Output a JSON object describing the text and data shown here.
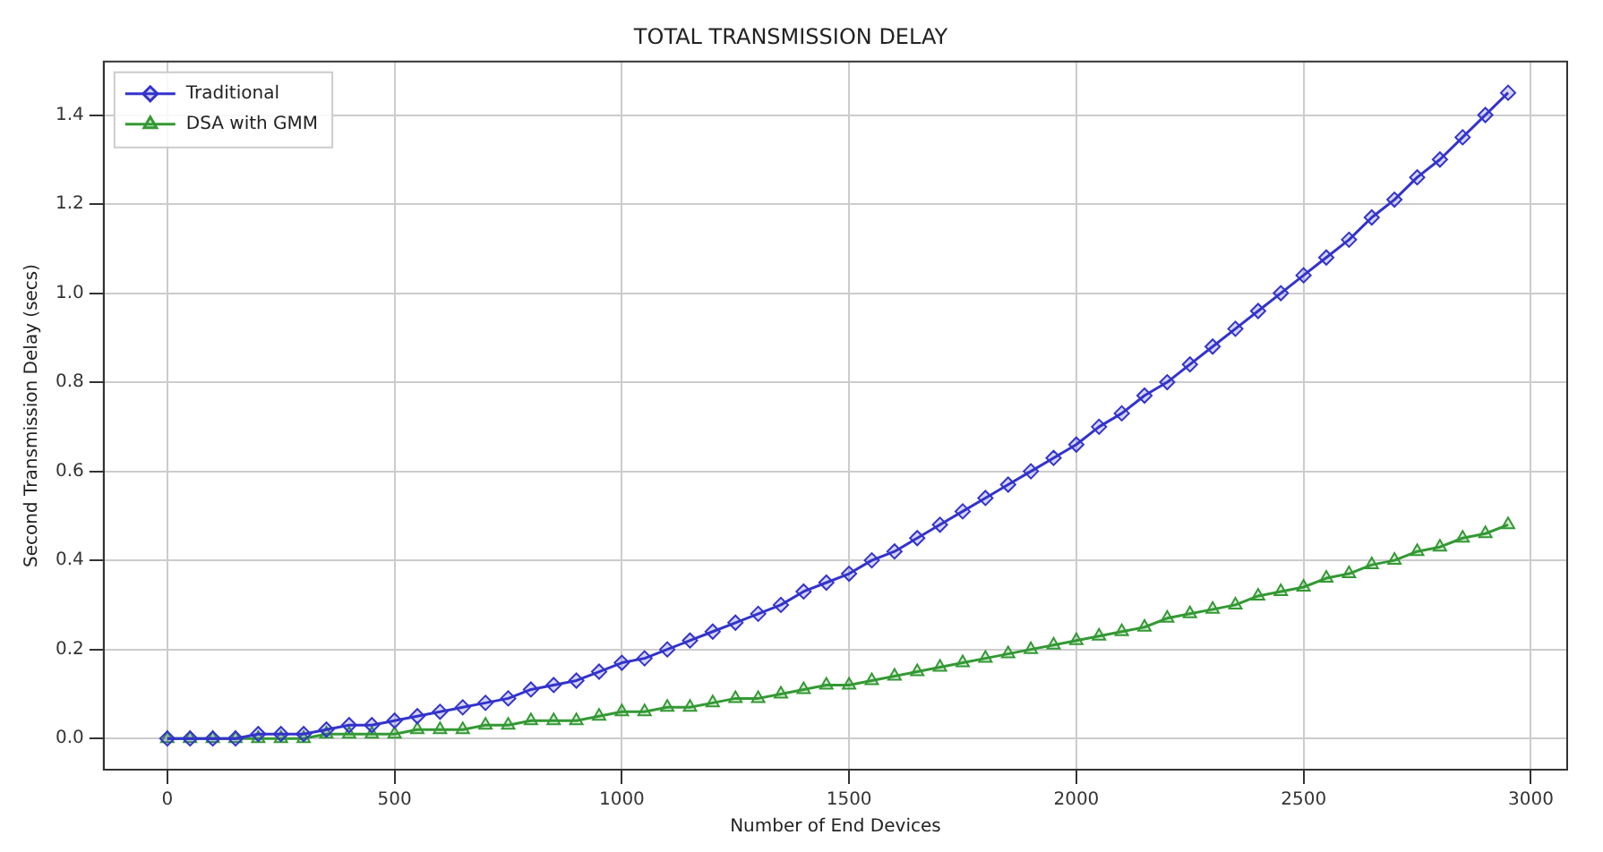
{
  "chart_data": {
    "type": "line",
    "title": "TOTAL TRANSMISSION DELAY",
    "xlabel": "Number of End Devices",
    "ylabel": "Second Transmission Delay (secs)",
    "x": [
      0,
      50,
      100,
      150,
      200,
      250,
      300,
      350,
      400,
      450,
      500,
      550,
      600,
      650,
      700,
      750,
      800,
      850,
      900,
      950,
      1000,
      1050,
      1100,
      1150,
      1200,
      1250,
      1300,
      1350,
      1400,
      1450,
      1500,
      1550,
      1600,
      1650,
      1700,
      1750,
      1800,
      1850,
      1900,
      1950,
      2000,
      2050,
      2100,
      2150,
      2200,
      2250,
      2300,
      2350,
      2400,
      2450,
      2500,
      2550,
      2600,
      2650,
      2700,
      2750,
      2800,
      2850,
      2900,
      2950
    ],
    "series": [
      {
        "name": "Traditional",
        "color": "#3333cc",
        "marker": "diamond",
        "values": [
          0,
          0,
          0,
          0,
          0.01,
          0.01,
          0.01,
          0.02,
          0.03,
          0.03,
          0.04,
          0.05,
          0.06,
          0.07,
          0.08,
          0.09,
          0.11,
          0.12,
          0.13,
          0.15,
          0.17,
          0.18,
          0.2,
          0.22,
          0.24,
          0.26,
          0.28,
          0.3,
          0.33,
          0.35,
          0.37,
          0.4,
          0.42,
          0.45,
          0.48,
          0.51,
          0.54,
          0.57,
          0.6,
          0.63,
          0.66,
          0.7,
          0.73,
          0.77,
          0.8,
          0.84,
          0.88,
          0.92,
          0.96,
          1.0,
          1.04,
          1.08,
          1.12,
          1.17,
          1.21,
          1.26,
          1.3,
          1.35,
          1.4,
          1.45
        ]
      },
      {
        "name": "DSA with GMM",
        "color": "#339933",
        "marker": "triangle",
        "values": [
          0,
          0,
          0,
          0,
          0,
          0,
          0,
          0.01,
          0.01,
          0.01,
          0.01,
          0.02,
          0.02,
          0.02,
          0.03,
          0.03,
          0.04,
          0.04,
          0.04,
          0.05,
          0.06,
          0.06,
          0.07,
          0.07,
          0.08,
          0.09,
          0.09,
          0.1,
          0.11,
          0.12,
          0.12,
          0.13,
          0.14,
          0.15,
          0.16,
          0.17,
          0.18,
          0.19,
          0.2,
          0.21,
          0.22,
          0.23,
          0.24,
          0.25,
          0.27,
          0.28,
          0.29,
          0.3,
          0.32,
          0.33,
          0.34,
          0.36,
          0.37,
          0.39,
          0.4,
          0.42,
          0.43,
          0.45,
          0.46,
          0.48
        ]
      }
    ],
    "xlim": [
      -140,
      3080
    ],
    "xticks": [
      0,
      500,
      1000,
      1500,
      2000,
      2500,
      3000
    ],
    "ylim": [
      -0.07,
      1.52
    ],
    "yticks": [
      {
        "value": 0,
        "label": "0.0"
      },
      0.2,
      0.4,
      0.6,
      0.8,
      {
        "value": 1,
        "label": "1.0"
      },
      1.2,
      1.4
    ],
    "grid": true,
    "legend": "top left",
    "line_style": "solid"
  }
}
